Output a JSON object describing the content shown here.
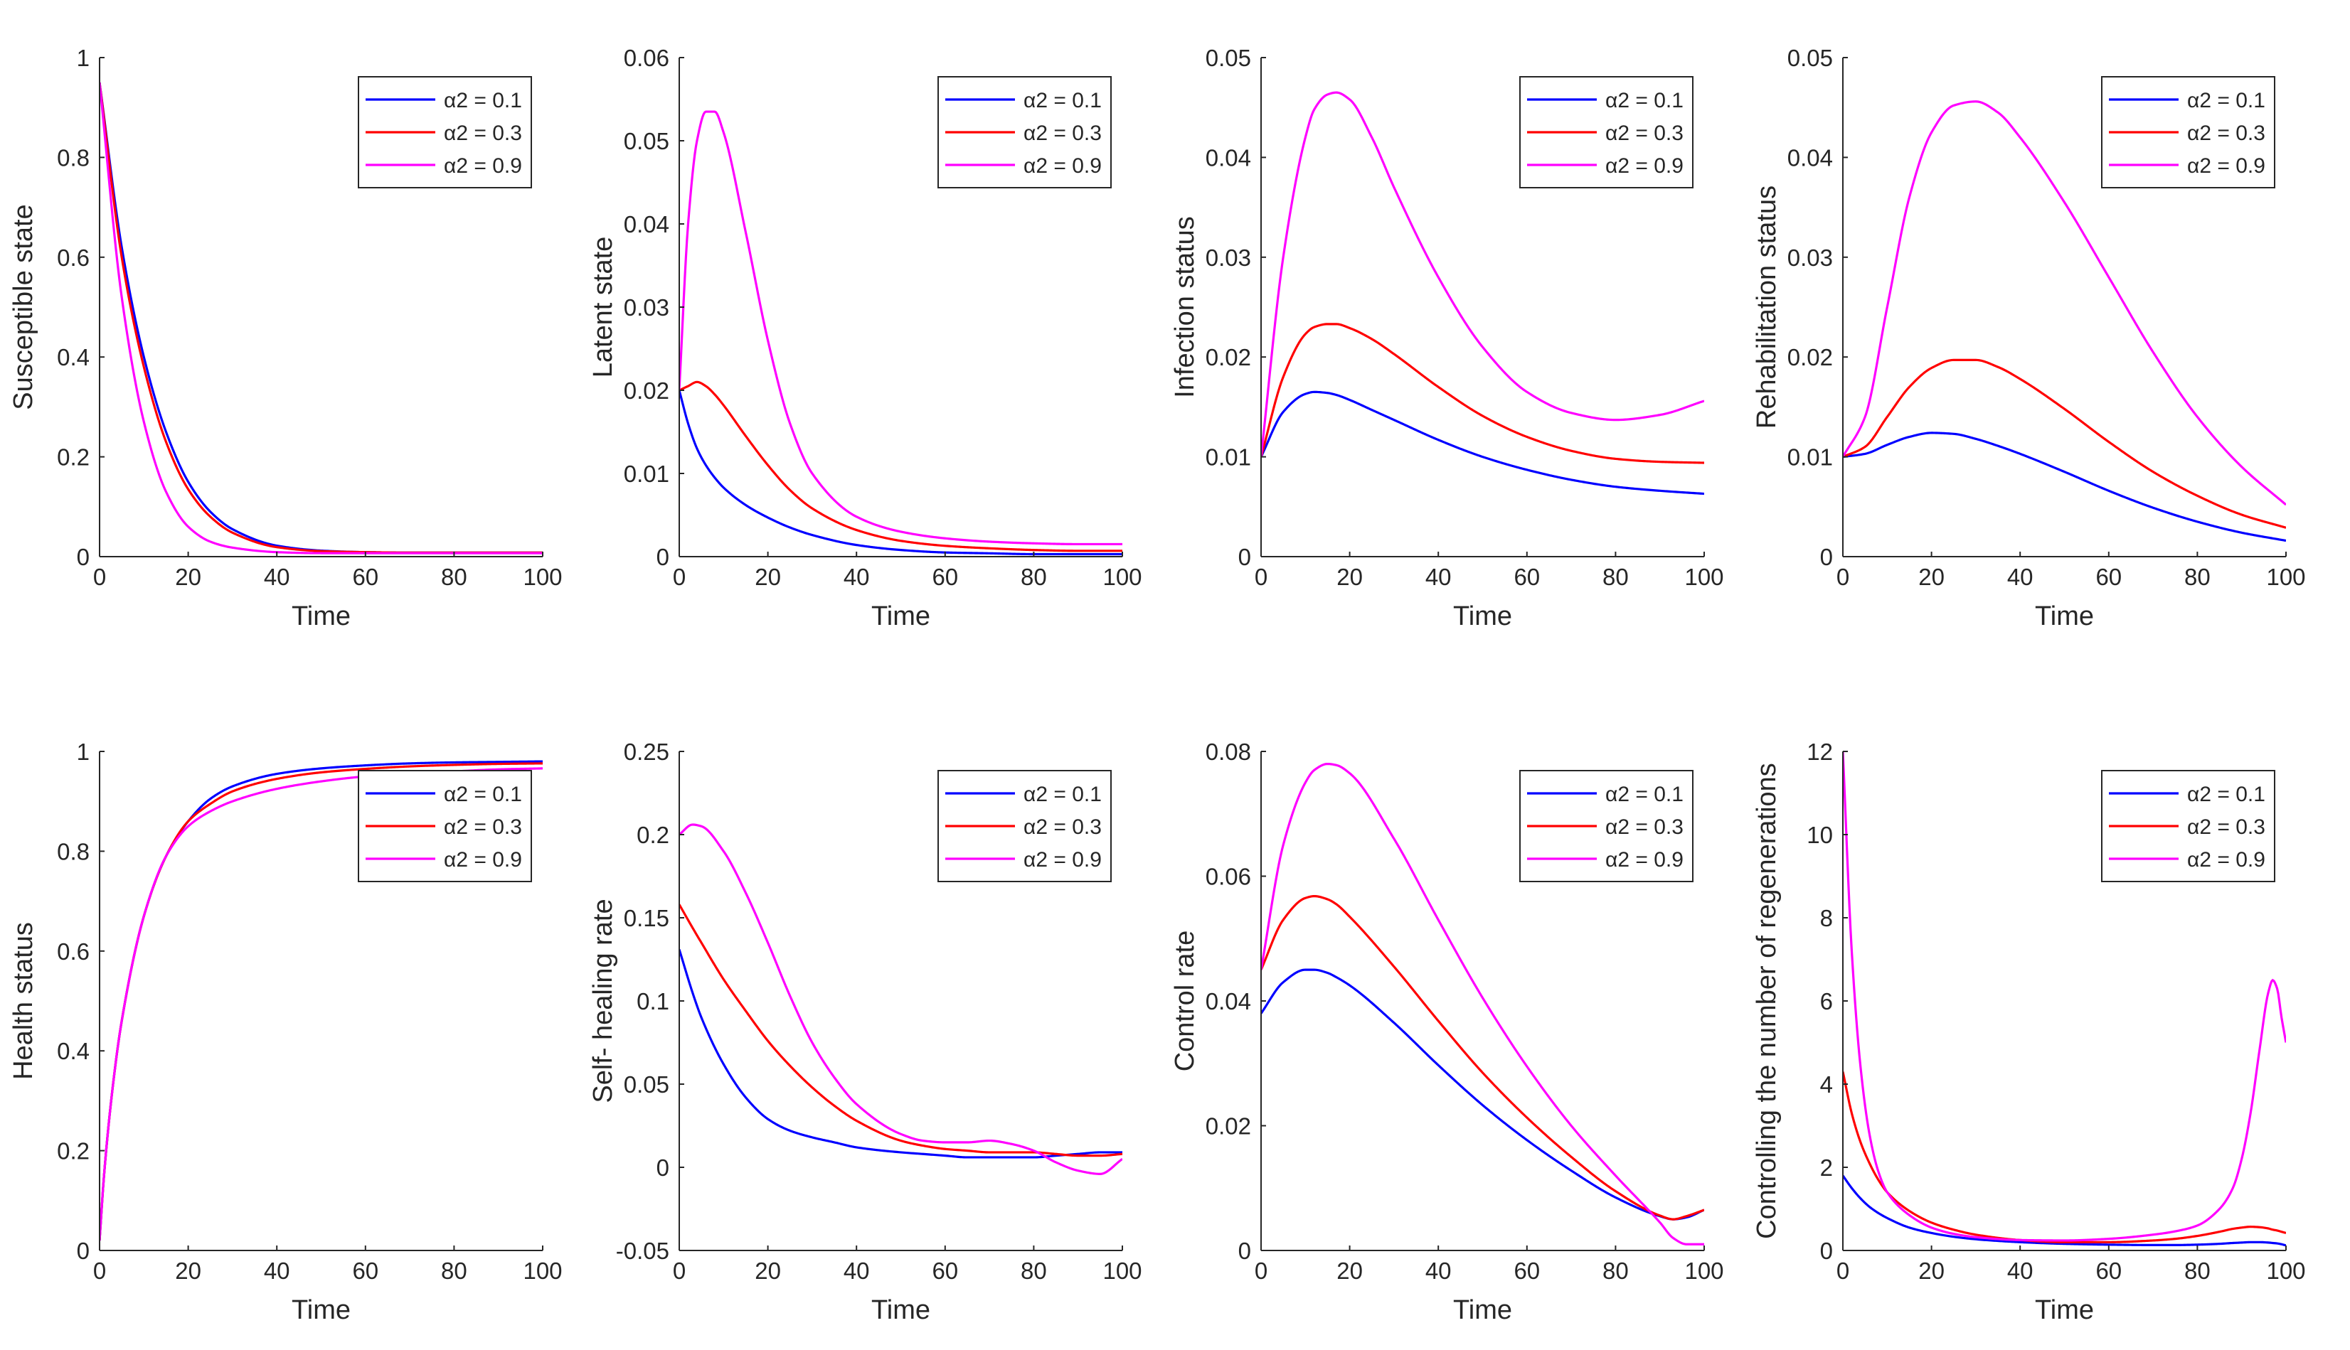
{
  "colors": {
    "a01": "#0000ff",
    "a03": "#ff0000",
    "a09": "#ff00ff",
    "axis": "#262626"
  },
  "chart_data": [
    {
      "type": "line",
      "ylabel": "Susceptible state",
      "xlabel": "Time",
      "xlim": [
        0,
        100
      ],
      "ylim": [
        0,
        1
      ],
      "xticks": [
        0,
        20,
        40,
        60,
        80,
        100
      ],
      "xtick_labels": [
        "0",
        "20",
        "40",
        "60",
        "80",
        "100"
      ],
      "yticks": [
        0,
        0.2,
        0.4,
        0.6,
        0.8,
        1
      ],
      "ytick_labels": [
        "0",
        "0.2",
        "0.4",
        "0.6",
        "0.8",
        "1"
      ],
      "legend": "top-right",
      "x": [
        0,
        5,
        10,
        15,
        20,
        25,
        30,
        40,
        50,
        60,
        70,
        80,
        90,
        100
      ],
      "series": [
        {
          "name": "α2 = 0.1",
          "color": "#0000ff",
          "values": [
            0.95,
            0.62,
            0.4,
            0.25,
            0.15,
            0.09,
            0.055,
            0.022,
            0.012,
            0.009,
            0.008,
            0.008,
            0.008,
            0.008
          ]
        },
        {
          "name": "α2 = 0.3",
          "color": "#ff0000",
          "values": [
            0.95,
            0.6,
            0.38,
            0.23,
            0.135,
            0.08,
            0.048,
            0.019,
            0.011,
            0.009,
            0.008,
            0.008,
            0.008,
            0.008
          ]
        },
        {
          "name": "α2 = 0.9",
          "color": "#ff00ff",
          "values": [
            0.95,
            0.52,
            0.27,
            0.13,
            0.06,
            0.03,
            0.018,
            0.009,
            0.007,
            0.007,
            0.007,
            0.007,
            0.007,
            0.007
          ]
        }
      ]
    },
    {
      "type": "line",
      "ylabel": "Latent state",
      "xlabel": "Time",
      "xlim": [
        0,
        100
      ],
      "ylim": [
        0,
        0.06
      ],
      "xticks": [
        0,
        20,
        40,
        60,
        80,
        100
      ],
      "xtick_labels": [
        "0",
        "20",
        "40",
        "60",
        "80",
        "100"
      ],
      "yticks": [
        0,
        0.01,
        0.02,
        0.03,
        0.04,
        0.05,
        0.06
      ],
      "ytick_labels": [
        "0",
        "0.01",
        "0.02",
        "0.03",
        "0.04",
        "0.05",
        "0.06"
      ],
      "legend": "top-right",
      "x": [
        0,
        2,
        4,
        6,
        8,
        10,
        15,
        20,
        25,
        30,
        40,
        50,
        60,
        70,
        80,
        90,
        100
      ],
      "series": [
        {
          "name": "α2 = 0.1",
          "color": "#0000ff",
          "values": [
            0.02,
            0.016,
            0.013,
            0.011,
            0.0095,
            0.0083,
            0.0062,
            0.0047,
            0.0035,
            0.0026,
            0.0014,
            0.0008,
            0.0005,
            0.0004,
            0.0003,
            0.0003,
            0.0003
          ]
        },
        {
          "name": "α2 = 0.3",
          "color": "#ff0000",
          "values": [
            0.02,
            0.0205,
            0.021,
            0.0205,
            0.0195,
            0.0182,
            0.0145,
            0.011,
            0.008,
            0.0058,
            0.0032,
            0.0019,
            0.0013,
            0.001,
            0.0008,
            0.0007,
            0.0007
          ]
        },
        {
          "name": "α2 = 0.9",
          "color": "#ff00ff",
          "values": [
            0.02,
            0.04,
            0.05,
            0.0535,
            0.0535,
            0.051,
            0.039,
            0.026,
            0.016,
            0.01,
            0.0048,
            0.003,
            0.0022,
            0.0018,
            0.0016,
            0.0015,
            0.0015
          ]
        }
      ]
    },
    {
      "type": "line",
      "ylabel": "Infection status",
      "xlabel": "Time",
      "xlim": [
        0,
        100
      ],
      "ylim": [
        0,
        0.05
      ],
      "xticks": [
        0,
        20,
        40,
        60,
        80,
        100
      ],
      "xtick_labels": [
        "0",
        "20",
        "40",
        "60",
        "80",
        "100"
      ],
      "yticks": [
        0,
        0.01,
        0.02,
        0.03,
        0.04,
        0.05
      ],
      "ytick_labels": [
        "0",
        "0.01",
        "0.02",
        "0.03",
        "0.04",
        "0.05"
      ],
      "legend": "top-right",
      "x": [
        0,
        5,
        10,
        12,
        15,
        17,
        20,
        25,
        30,
        40,
        50,
        60,
        70,
        80,
        90,
        100
      ],
      "series": [
        {
          "name": "α2 = 0.1",
          "color": "#0000ff",
          "values": [
            0.01,
            0.0145,
            0.0163,
            0.0165,
            0.0164,
            0.0162,
            0.0157,
            0.0147,
            0.0137,
            0.0117,
            0.01,
            0.0087,
            0.0077,
            0.007,
            0.0066,
            0.0063
          ]
        },
        {
          "name": "α2 = 0.3",
          "color": "#ff0000",
          "values": [
            0.01,
            0.018,
            0.0223,
            0.023,
            0.0233,
            0.0233,
            0.0229,
            0.0218,
            0.0203,
            0.017,
            0.0141,
            0.012,
            0.0106,
            0.0098,
            0.0095,
            0.0094
          ]
        },
        {
          "name": "α2 = 0.9",
          "color": "#ff00ff",
          "values": [
            0.01,
            0.03,
            0.042,
            0.0448,
            0.0463,
            0.0465,
            0.0458,
            0.042,
            0.037,
            0.028,
            0.021,
            0.0165,
            0.0144,
            0.0137,
            0.0142,
            0.0156
          ]
        }
      ]
    },
    {
      "type": "line",
      "ylabel": "Rehabilitation status",
      "xlabel": "Time",
      "xlim": [
        0,
        100
      ],
      "ylim": [
        0,
        0.05
      ],
      "xticks": [
        0,
        20,
        40,
        60,
        80,
        100
      ],
      "xtick_labels": [
        "0",
        "20",
        "40",
        "60",
        "80",
        "100"
      ],
      "yticks": [
        0,
        0.01,
        0.02,
        0.03,
        0.04,
        0.05
      ],
      "ytick_labels": [
        "0",
        "0.01",
        "0.02",
        "0.03",
        "0.04",
        "0.05"
      ],
      "legend": "top-right",
      "x": [
        0,
        5,
        10,
        15,
        20,
        25,
        30,
        35,
        40,
        50,
        60,
        70,
        80,
        90,
        100
      ],
      "series": [
        {
          "name": "α2 = 0.1",
          "color": "#0000ff",
          "values": [
            0.01,
            0.0103,
            0.0112,
            0.012,
            0.0124,
            0.0123,
            0.0118,
            0.0111,
            0.0103,
            0.0085,
            0.0066,
            0.0049,
            0.0035,
            0.0024,
            0.0016
          ]
        },
        {
          "name": "α2 = 0.3",
          "color": "#ff0000",
          "values": [
            0.01,
            0.011,
            0.014,
            0.017,
            0.0189,
            0.0197,
            0.0197,
            0.019,
            0.0178,
            0.0148,
            0.0115,
            0.0085,
            0.0061,
            0.0042,
            0.0029
          ]
        },
        {
          "name": "α2 = 0.9",
          "color": "#ff00ff",
          "values": [
            0.01,
            0.014,
            0.025,
            0.036,
            0.0425,
            0.0452,
            0.0456,
            0.0445,
            0.042,
            0.0355,
            0.028,
            0.0205,
            0.014,
            0.009,
            0.0052
          ]
        }
      ]
    },
    {
      "type": "line",
      "ylabel": "Health status",
      "xlabel": "Time",
      "xlim": [
        0,
        100
      ],
      "ylim": [
        0,
        1
      ],
      "xticks": [
        0,
        20,
        40,
        60,
        80,
        100
      ],
      "xtick_labels": [
        "0",
        "20",
        "40",
        "60",
        "80",
        "100"
      ],
      "yticks": [
        0,
        0.2,
        0.4,
        0.6,
        0.8,
        1
      ],
      "ytick_labels": [
        "0",
        "0.2",
        "0.4",
        "0.6",
        "0.8",
        "1"
      ],
      "legend": "top-right",
      "x": [
        0,
        1,
        3,
        5,
        10,
        15,
        20,
        25,
        30,
        40,
        50,
        60,
        70,
        80,
        90,
        100
      ],
      "series": [
        {
          "name": "α2 = 0.1",
          "color": "#0000ff",
          "values": [
            0.02,
            0.15,
            0.33,
            0.46,
            0.67,
            0.79,
            0.86,
            0.905,
            0.93,
            0.955,
            0.966,
            0.972,
            0.976,
            0.978,
            0.979,
            0.98
          ]
        },
        {
          "name": "α2 = 0.3",
          "color": "#ff0000",
          "values": [
            0.02,
            0.15,
            0.33,
            0.46,
            0.67,
            0.79,
            0.86,
            0.895,
            0.92,
            0.945,
            0.958,
            0.965,
            0.97,
            0.973,
            0.975,
            0.976
          ]
        },
        {
          "name": "α2 = 0.9",
          "color": "#ff00ff",
          "values": [
            0.02,
            0.15,
            0.33,
            0.46,
            0.67,
            0.79,
            0.85,
            0.88,
            0.9,
            0.925,
            0.94,
            0.95,
            0.956,
            0.96,
            0.964,
            0.966
          ]
        }
      ]
    },
    {
      "type": "line",
      "ylabel": "Self- healing rate",
      "xlabel": "Time",
      "xlim": [
        0,
        100
      ],
      "ylim": [
        -0.05,
        0.25
      ],
      "xticks": [
        0,
        20,
        40,
        60,
        80,
        100
      ],
      "xtick_labels": [
        "0",
        "20",
        "40",
        "60",
        "80",
        "100"
      ],
      "yticks": [
        -0.05,
        0,
        0.05,
        0.1,
        0.15,
        0.2,
        0.25
      ],
      "ytick_labels": [
        "-0.05",
        "0",
        "0.05",
        "0.1",
        "0.15",
        "0.2",
        "0.25"
      ],
      "legend": "top-right",
      "x": [
        0,
        3,
        5,
        10,
        15,
        20,
        25,
        30,
        35,
        40,
        50,
        55,
        60,
        65,
        70,
        75,
        80,
        85,
        90,
        95,
        100
      ],
      "series": [
        {
          "name": "α2 = 0.1",
          "color": "#0000ff",
          "values": [
            0.131,
            0.105,
            0.09,
            0.062,
            0.042,
            0.029,
            0.022,
            0.018,
            0.015,
            0.012,
            0.009,
            0.008,
            0.007,
            0.006,
            0.006,
            0.006,
            0.006,
            0.007,
            0.008,
            0.009,
            0.009
          ]
        },
        {
          "name": "α2 = 0.3",
          "color": "#ff0000",
          "values": [
            0.158,
            0.144,
            0.135,
            0.113,
            0.094,
            0.076,
            0.061,
            0.048,
            0.037,
            0.028,
            0.016,
            0.013,
            0.011,
            0.01,
            0.009,
            0.009,
            0.009,
            0.008,
            0.007,
            0.007,
            0.008
          ]
        },
        {
          "name": "α2 = 0.9",
          "color": "#ff00ff",
          "values": [
            0.2,
            0.206,
            0.205,
            0.19,
            0.165,
            0.135,
            0.103,
            0.075,
            0.054,
            0.038,
            0.02,
            0.016,
            0.015,
            0.015,
            0.016,
            0.014,
            0.01,
            0.003,
            -0.002,
            -0.004,
            0.005
          ]
        }
      ]
    },
    {
      "type": "line",
      "ylabel": "Control rate",
      "xlabel": "Time",
      "xlim": [
        0,
        100
      ],
      "ylim": [
        0,
        0.08
      ],
      "xticks": [
        0,
        20,
        40,
        60,
        80,
        100
      ],
      "xtick_labels": [
        "0",
        "20",
        "40",
        "60",
        "80",
        "100"
      ],
      "yticks": [
        0,
        0.02,
        0.04,
        0.06,
        0.08
      ],
      "ytick_labels": [
        "0",
        "0.02",
        "0.04",
        "0.06",
        "0.08"
      ],
      "legend": "top-right",
      "x": [
        0,
        5,
        10,
        12,
        15,
        17,
        20,
        30,
        40,
        50,
        60,
        70,
        80,
        90,
        93,
        96,
        100
      ],
      "series": [
        {
          "name": "α2 = 0.1",
          "color": "#0000ff",
          "values": [
            0.038,
            0.043,
            0.045,
            0.045,
            0.0445,
            0.0438,
            0.0425,
            0.0365,
            0.0297,
            0.0233,
            0.0177,
            0.0128,
            0.0085,
            0.0055,
            0.005,
            0.0053,
            0.0065
          ]
        },
        {
          "name": "α2 = 0.3",
          "color": "#ff0000",
          "values": [
            0.045,
            0.053,
            0.0565,
            0.0568,
            0.0563,
            0.0555,
            0.0535,
            0.0455,
            0.0368,
            0.0285,
            0.0213,
            0.015,
            0.0095,
            0.0056,
            0.005,
            0.0055,
            0.0065
          ]
        },
        {
          "name": "α2 = 0.9",
          "color": "#ff00ff",
          "values": [
            0.045,
            0.065,
            0.075,
            0.077,
            0.078,
            0.0778,
            0.0765,
            0.066,
            0.053,
            0.0405,
            0.0295,
            0.02,
            0.012,
            0.0045,
            0.002,
            0.001,
            0.001
          ]
        }
      ]
    },
    {
      "type": "line",
      "ylabel": "Controlling the number of regenerations",
      "xlabel": "Time",
      "xlim": [
        0,
        100
      ],
      "ylim": [
        0,
        12
      ],
      "xticks": [
        0,
        20,
        40,
        60,
        80,
        100
      ],
      "xtick_labels": [
        "0",
        "20",
        "40",
        "60",
        "80",
        "100"
      ],
      "yticks": [
        0,
        2,
        4,
        6,
        8,
        10,
        12
      ],
      "ytick_labels": [
        "0",
        "2",
        "4",
        "6",
        "8",
        "10",
        "12"
      ],
      "legend": "top-right",
      "x": [
        0,
        2,
        4,
        6,
        8,
        10,
        15,
        20,
        25,
        30,
        40,
        50,
        60,
        70,
        75,
        80,
        85,
        88,
        90,
        92,
        94,
        96,
        97,
        98,
        99,
        100
      ],
      "series": [
        {
          "name": "α2 = 0.1",
          "color": "#0000ff",
          "values": [
            1.8,
            1.5,
            1.25,
            1.05,
            0.9,
            0.78,
            0.55,
            0.42,
            0.33,
            0.27,
            0.2,
            0.16,
            0.14,
            0.13,
            0.13,
            0.14,
            0.16,
            0.18,
            0.19,
            0.2,
            0.2,
            0.19,
            0.18,
            0.17,
            0.15,
            0.12
          ]
        },
        {
          "name": "α2 = 0.3",
          "color": "#ff0000",
          "values": [
            4.3,
            3.3,
            2.6,
            2.1,
            1.7,
            1.4,
            0.95,
            0.67,
            0.5,
            0.38,
            0.25,
            0.2,
            0.2,
            0.24,
            0.28,
            0.35,
            0.45,
            0.52,
            0.55,
            0.57,
            0.56,
            0.53,
            0.5,
            0.48,
            0.45,
            0.42
          ]
        },
        {
          "name": "α2 = 0.9",
          "color": "#ff00ff",
          "values": [
            12.0,
            7.2,
            4.4,
            2.8,
            1.9,
            1.4,
            0.85,
            0.55,
            0.4,
            0.32,
            0.25,
            0.24,
            0.28,
            0.38,
            0.46,
            0.6,
            1.0,
            1.5,
            2.2,
            3.3,
            4.8,
            6.2,
            6.5,
            6.3,
            5.6,
            5.0
          ]
        }
      ]
    }
  ]
}
